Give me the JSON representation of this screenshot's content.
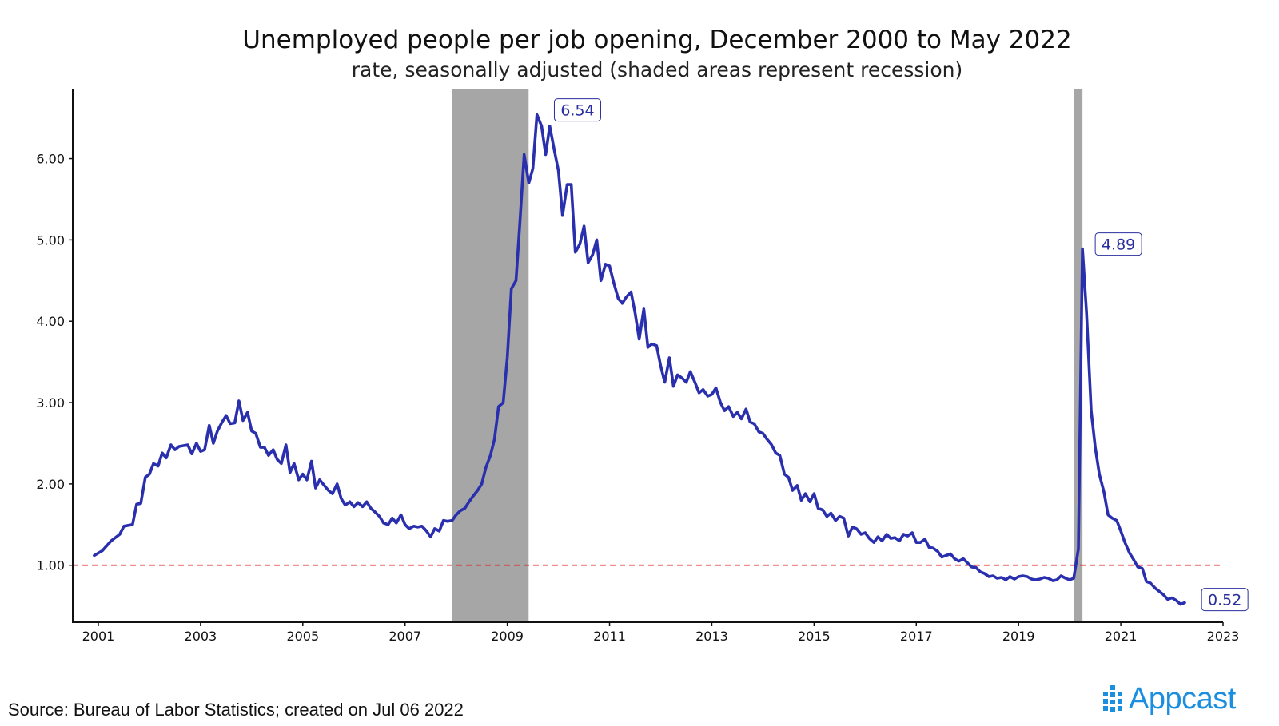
{
  "brand": {
    "name": "Appcast",
    "color": "#1a8fe0",
    "icon": "appcast-dots-logo"
  },
  "source_note": "Source: Bureau of Labor Statistics; created on Jul 06 2022",
  "chart_data": {
    "type": "line",
    "title": "Unemployed people per job opening, December 2000 to May 2022",
    "subtitle": "rate, seasonally adjusted (shaded areas represent recession)",
    "xlabel": "",
    "ylabel": "",
    "xlim": [
      2000.5,
      2023.0
    ],
    "ylim": [
      0.3,
      6.85
    ],
    "x_ticks": [
      2001,
      2003,
      2005,
      2007,
      2009,
      2011,
      2013,
      2015,
      2017,
      2019,
      2021,
      2023
    ],
    "y_ticks": [
      1.0,
      2.0,
      3.0,
      4.0,
      5.0,
      6.0
    ],
    "y_tick_labels": [
      "1.00",
      "2.00",
      "3.00",
      "4.00",
      "5.00",
      "6.00"
    ],
    "grid": false,
    "reference_line": {
      "y": 1.0,
      "style": "dashed",
      "color": "#dd2222"
    },
    "recessions": [
      {
        "start": 2007.917,
        "end": 2009.417
      },
      {
        "start": 2020.083,
        "end": 2020.25
      }
    ],
    "line_color": "#2a2fae",
    "recession_color": "#a6a6a6",
    "annotations": [
      {
        "x": 2009.67,
        "y": 6.54,
        "text": "6.54"
      },
      {
        "x": 2020.25,
        "y": 4.89,
        "text": "4.89"
      },
      {
        "x": 2022.33,
        "y": 0.52,
        "text": "0.52"
      }
    ],
    "series": [
      {
        "points": [
          [
            2000.92,
            1.12
          ],
          [
            2001.08,
            1.18
          ],
          [
            2001.25,
            1.3
          ],
          [
            2001.42,
            1.38
          ],
          [
            2001.5,
            1.48
          ],
          [
            2001.67,
            1.5
          ],
          [
            2001.75,
            1.75
          ],
          [
            2001.83,
            1.76
          ],
          [
            2001.92,
            2.08
          ],
          [
            2002.0,
            2.12
          ],
          [
            2002.08,
            2.25
          ],
          [
            2002.17,
            2.22
          ],
          [
            2002.25,
            2.38
          ],
          [
            2002.33,
            2.32
          ],
          [
            2002.42,
            2.48
          ],
          [
            2002.5,
            2.42
          ],
          [
            2002.58,
            2.46
          ],
          [
            2002.75,
            2.48
          ],
          [
            2002.83,
            2.37
          ],
          [
            2002.92,
            2.5
          ],
          [
            2003.0,
            2.4
          ],
          [
            2003.08,
            2.42
          ],
          [
            2003.17,
            2.72
          ],
          [
            2003.25,
            2.5
          ],
          [
            2003.33,
            2.65
          ],
          [
            2003.42,
            2.76
          ],
          [
            2003.5,
            2.84
          ],
          [
            2003.58,
            2.74
          ],
          [
            2003.67,
            2.75
          ],
          [
            2003.75,
            3.02
          ],
          [
            2003.83,
            2.78
          ],
          [
            2003.92,
            2.88
          ],
          [
            2004.0,
            2.65
          ],
          [
            2004.08,
            2.62
          ],
          [
            2004.17,
            2.45
          ],
          [
            2004.25,
            2.45
          ],
          [
            2004.33,
            2.35
          ],
          [
            2004.42,
            2.42
          ],
          [
            2004.5,
            2.3
          ],
          [
            2004.58,
            2.25
          ],
          [
            2004.67,
            2.48
          ],
          [
            2004.75,
            2.14
          ],
          [
            2004.83,
            2.25
          ],
          [
            2004.92,
            2.05
          ],
          [
            2005.0,
            2.12
          ],
          [
            2005.08,
            2.05
          ],
          [
            2005.17,
            2.28
          ],
          [
            2005.25,
            1.95
          ],
          [
            2005.33,
            2.05
          ],
          [
            2005.42,
            1.98
          ],
          [
            2005.5,
            1.92
          ],
          [
            2005.58,
            1.88
          ],
          [
            2005.67,
            2.0
          ],
          [
            2005.75,
            1.82
          ],
          [
            2005.83,
            1.74
          ],
          [
            2005.92,
            1.78
          ],
          [
            2006.0,
            1.72
          ],
          [
            2006.08,
            1.77
          ],
          [
            2006.17,
            1.72
          ],
          [
            2006.25,
            1.78
          ],
          [
            2006.33,
            1.7
          ],
          [
            2006.42,
            1.65
          ],
          [
            2006.5,
            1.6
          ],
          [
            2006.58,
            1.52
          ],
          [
            2006.67,
            1.5
          ],
          [
            2006.75,
            1.58
          ],
          [
            2006.83,
            1.52
          ],
          [
            2006.92,
            1.62
          ],
          [
            2007.0,
            1.5
          ],
          [
            2007.08,
            1.45
          ],
          [
            2007.17,
            1.48
          ],
          [
            2007.25,
            1.47
          ],
          [
            2007.33,
            1.48
          ],
          [
            2007.42,
            1.42
          ],
          [
            2007.5,
            1.35
          ],
          [
            2007.58,
            1.45
          ],
          [
            2007.67,
            1.42
          ],
          [
            2007.75,
            1.55
          ],
          [
            2007.83,
            1.54
          ],
          [
            2007.92,
            1.55
          ],
          [
            2008.0,
            1.62
          ],
          [
            2008.08,
            1.67
          ],
          [
            2008.17,
            1.7
          ],
          [
            2008.25,
            1.78
          ],
          [
            2008.33,
            1.85
          ],
          [
            2008.42,
            1.92
          ],
          [
            2008.5,
            2.0
          ],
          [
            2008.58,
            2.2
          ],
          [
            2008.67,
            2.35
          ],
          [
            2008.75,
            2.55
          ],
          [
            2008.83,
            2.95
          ],
          [
            2008.92,
            3.0
          ],
          [
            2009.0,
            3.55
          ],
          [
            2009.08,
            4.4
          ],
          [
            2009.17,
            4.5
          ],
          [
            2009.25,
            5.25
          ],
          [
            2009.33,
            6.05
          ],
          [
            2009.42,
            5.7
          ],
          [
            2009.5,
            5.88
          ],
          [
            2009.58,
            6.54
          ],
          [
            2009.67,
            6.4
          ],
          [
            2009.75,
            6.05
          ],
          [
            2009.83,
            6.4
          ],
          [
            2009.92,
            6.1
          ],
          [
            2010.0,
            5.85
          ],
          [
            2010.08,
            5.3
          ],
          [
            2010.17,
            5.68
          ],
          [
            2010.25,
            5.68
          ],
          [
            2010.33,
            4.85
          ],
          [
            2010.42,
            4.95
          ],
          [
            2010.5,
            5.17
          ],
          [
            2010.58,
            4.72
          ],
          [
            2010.67,
            4.82
          ],
          [
            2010.75,
            5.0
          ],
          [
            2010.83,
            4.5
          ],
          [
            2010.92,
            4.7
          ],
          [
            2011.0,
            4.68
          ],
          [
            2011.08,
            4.48
          ],
          [
            2011.17,
            4.28
          ],
          [
            2011.25,
            4.22
          ],
          [
            2011.33,
            4.3
          ],
          [
            2011.42,
            4.36
          ],
          [
            2011.5,
            4.1
          ],
          [
            2011.58,
            3.78
          ],
          [
            2011.67,
            4.15
          ],
          [
            2011.75,
            3.68
          ],
          [
            2011.83,
            3.72
          ],
          [
            2011.92,
            3.7
          ],
          [
            2012.0,
            3.45
          ],
          [
            2012.08,
            3.25
          ],
          [
            2012.17,
            3.55
          ],
          [
            2012.25,
            3.2
          ],
          [
            2012.33,
            3.34
          ],
          [
            2012.42,
            3.3
          ],
          [
            2012.5,
            3.25
          ],
          [
            2012.58,
            3.38
          ],
          [
            2012.67,
            3.25
          ],
          [
            2012.75,
            3.12
          ],
          [
            2012.83,
            3.16
          ],
          [
            2012.92,
            3.08
          ],
          [
            2013.0,
            3.1
          ],
          [
            2013.08,
            3.18
          ],
          [
            2013.17,
            3.0
          ],
          [
            2013.25,
            2.9
          ],
          [
            2013.33,
            2.95
          ],
          [
            2013.42,
            2.83
          ],
          [
            2013.5,
            2.88
          ],
          [
            2013.58,
            2.8
          ],
          [
            2013.67,
            2.92
          ],
          [
            2013.75,
            2.76
          ],
          [
            2013.83,
            2.74
          ],
          [
            2013.92,
            2.64
          ],
          [
            2014.0,
            2.62
          ],
          [
            2014.08,
            2.55
          ],
          [
            2014.17,
            2.48
          ],
          [
            2014.25,
            2.38
          ],
          [
            2014.33,
            2.35
          ],
          [
            2014.42,
            2.12
          ],
          [
            2014.5,
            2.08
          ],
          [
            2014.58,
            1.92
          ],
          [
            2014.67,
            1.98
          ],
          [
            2014.75,
            1.8
          ],
          [
            2014.83,
            1.88
          ],
          [
            2014.92,
            1.78
          ],
          [
            2015.0,
            1.88
          ],
          [
            2015.08,
            1.7
          ],
          [
            2015.17,
            1.68
          ],
          [
            2015.25,
            1.6
          ],
          [
            2015.33,
            1.64
          ],
          [
            2015.42,
            1.55
          ],
          [
            2015.5,
            1.6
          ],
          [
            2015.58,
            1.58
          ],
          [
            2015.67,
            1.36
          ],
          [
            2015.75,
            1.47
          ],
          [
            2015.83,
            1.45
          ],
          [
            2015.92,
            1.38
          ],
          [
            2016.0,
            1.4
          ],
          [
            2016.08,
            1.33
          ],
          [
            2016.17,
            1.28
          ],
          [
            2016.25,
            1.35
          ],
          [
            2016.33,
            1.3
          ],
          [
            2016.42,
            1.38
          ],
          [
            2016.5,
            1.33
          ],
          [
            2016.58,
            1.34
          ],
          [
            2016.67,
            1.3
          ],
          [
            2016.75,
            1.38
          ],
          [
            2016.83,
            1.36
          ],
          [
            2016.92,
            1.4
          ],
          [
            2017.0,
            1.28
          ],
          [
            2017.08,
            1.28
          ],
          [
            2017.17,
            1.32
          ],
          [
            2017.25,
            1.22
          ],
          [
            2017.33,
            1.21
          ],
          [
            2017.42,
            1.17
          ],
          [
            2017.5,
            1.1
          ],
          [
            2017.58,
            1.12
          ],
          [
            2017.67,
            1.14
          ],
          [
            2017.75,
            1.08
          ],
          [
            2017.83,
            1.05
          ],
          [
            2017.92,
            1.08
          ],
          [
            2018.0,
            1.03
          ],
          [
            2018.08,
            0.98
          ],
          [
            2018.17,
            0.97
          ],
          [
            2018.25,
            0.92
          ],
          [
            2018.33,
            0.9
          ],
          [
            2018.42,
            0.86
          ],
          [
            2018.5,
            0.87
          ],
          [
            2018.58,
            0.84
          ],
          [
            2018.67,
            0.85
          ],
          [
            2018.75,
            0.82
          ],
          [
            2018.83,
            0.86
          ],
          [
            2018.92,
            0.83
          ],
          [
            2019.0,
            0.86
          ],
          [
            2019.08,
            0.87
          ],
          [
            2019.17,
            0.86
          ],
          [
            2019.25,
            0.83
          ],
          [
            2019.33,
            0.82
          ],
          [
            2019.42,
            0.83
          ],
          [
            2019.5,
            0.85
          ],
          [
            2019.58,
            0.84
          ],
          [
            2019.67,
            0.81
          ],
          [
            2019.75,
            0.82
          ],
          [
            2019.83,
            0.87
          ],
          [
            2019.92,
            0.84
          ],
          [
            2020.0,
            0.82
          ],
          [
            2020.08,
            0.84
          ],
          [
            2020.17,
            1.2
          ],
          [
            2020.25,
            4.89
          ],
          [
            2020.33,
            4.1
          ],
          [
            2020.42,
            2.9
          ],
          [
            2020.5,
            2.45
          ],
          [
            2020.58,
            2.12
          ],
          [
            2020.67,
            1.9
          ],
          [
            2020.75,
            1.62
          ],
          [
            2020.83,
            1.58
          ],
          [
            2020.92,
            1.55
          ],
          [
            2021.0,
            1.42
          ],
          [
            2021.08,
            1.28
          ],
          [
            2021.17,
            1.15
          ],
          [
            2021.25,
            1.07
          ],
          [
            2021.33,
            0.98
          ],
          [
            2021.42,
            0.96
          ],
          [
            2021.5,
            0.8
          ],
          [
            2021.58,
            0.78
          ],
          [
            2021.67,
            0.72
          ],
          [
            2021.75,
            0.68
          ],
          [
            2021.83,
            0.64
          ],
          [
            2021.92,
            0.58
          ],
          [
            2022.0,
            0.6
          ],
          [
            2022.08,
            0.57
          ],
          [
            2022.17,
            0.52
          ],
          [
            2022.25,
            0.54
          ]
        ]
      }
    ]
  }
}
